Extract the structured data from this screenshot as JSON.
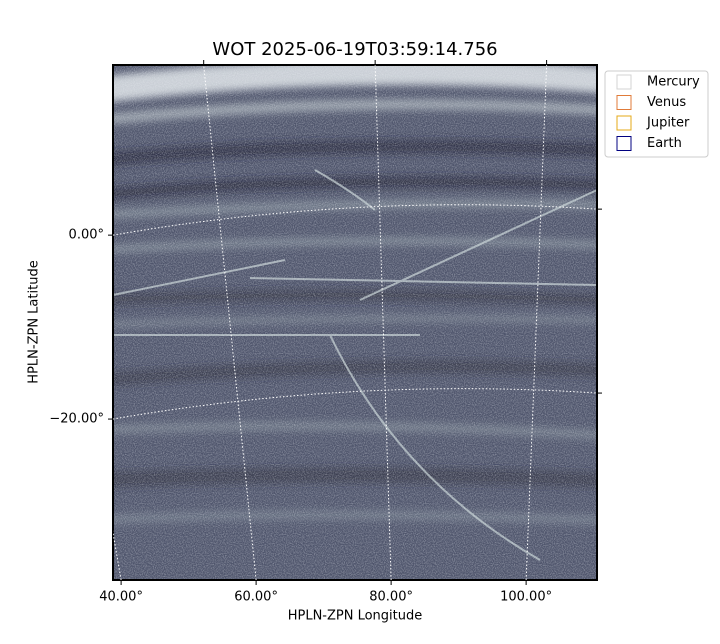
{
  "chart_data": {
    "type": "image",
    "title": "WOT 2025-06-19T03:59:14.756",
    "xlabel": "HPLN-ZPN Longitude",
    "ylabel": "HPLN-ZPN Latitude",
    "xlim": [
      38.8,
      110.5
    ],
    "ylim": [
      -37.5,
      18.5
    ],
    "xticks": [
      {
        "value": 40,
        "label": "40.00°"
      },
      {
        "value": 60,
        "label": "60.00°"
      },
      {
        "value": 80,
        "label": "80.00°"
      },
      {
        "value": 100,
        "label": "100.00°"
      }
    ],
    "yticks": [
      {
        "value": 0,
        "label": "0.00°"
      },
      {
        "value": -20,
        "label": "−20.00°"
      }
    ],
    "grid": true,
    "legend_position": "upper right",
    "legend": [
      {
        "name": "Mercury",
        "color": "#d3d3d3"
      },
      {
        "name": "Venus",
        "color": "#e07b39"
      },
      {
        "name": "Jupiter",
        "color": "#e6a817"
      },
      {
        "name": "Earth",
        "color": "#000080"
      }
    ]
  }
}
